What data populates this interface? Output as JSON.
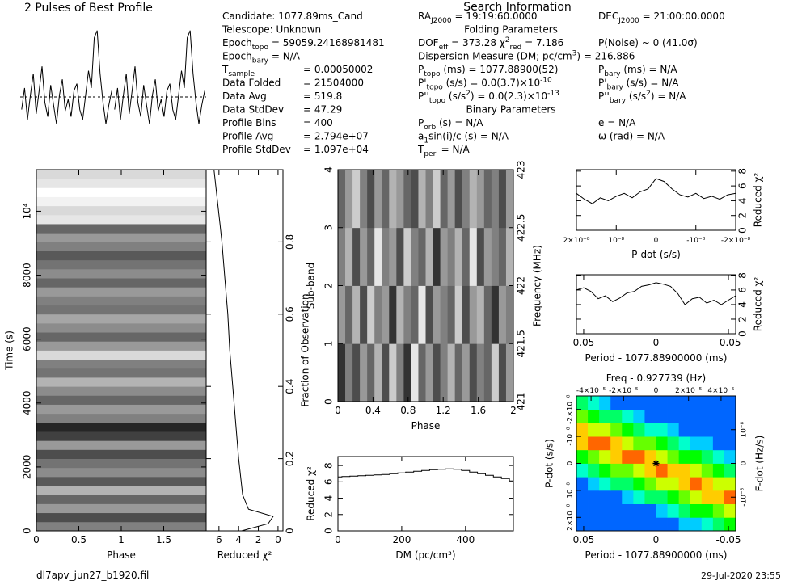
{
  "header": {
    "file": "dl7apv_jun27_b1920.fil",
    "date": "29-Jul-2020 23:55"
  },
  "candidate_info": [
    {
      "label": [
        "Candidate:  1077.89ms_Cand"
      ]
    },
    {
      "label": [
        "Telescope:  Unknown"
      ]
    },
    {
      "label": [
        "Epoch",
        {
          "text": "topo",
          "shift": "sub"
        },
        " = 59059.24168981481"
      ]
    },
    {
      "label": [
        "Epoch",
        {
          "text": "bary",
          "shift": "sub"
        },
        " = N/A"
      ]
    },
    {
      "label": [
        "T",
        {
          "text": "sample",
          "shift": "sub"
        }
      ],
      "value": "=  0.00050002"
    },
    {
      "label": [
        "Data Folded"
      ],
      "value": "=  21504000"
    },
    {
      "label": [
        "Data Avg"
      ],
      "value": "=  519.8"
    },
    {
      "label": [
        "Data StdDev"
      ],
      "value": "=  47.29"
    },
    {
      "label": [
        "Profile Bins"
      ],
      "value": "=  400"
    },
    {
      "label": [
        "Profile Avg"
      ],
      "value": "=  2.794e+07"
    },
    {
      "label": [
        "Profile StdDev"
      ],
      "value": "=  1.097e+04"
    }
  ],
  "search_info": {
    "title": "Search Information",
    "rows": [
      {
        "left": [
          "RA",
          {
            "text": "J2000",
            "shift": "sub"
          },
          " = 19:19:60.0000"
        ],
        "right": [
          "DEC",
          {
            "text": "J2000",
            "shift": "sub"
          },
          " = 21:00:00.0000"
        ]
      },
      {
        "heading": "Folding Parameters"
      },
      {
        "left": [
          "DOF",
          {
            "text": "eff",
            "shift": "sub"
          },
          " = 373.28  χ",
          {
            "text": "2",
            "shift": "sup"
          },
          {
            "text": "red",
            "shift": "sub"
          },
          " = 7.186"
        ],
        "right": [
          "P(Noise) ~ 0   (41.0σ)"
        ]
      },
      {
        "left": [
          "Dispersion Measure (DM; pc/cm",
          {
            "text": "3",
            "shift": "sup"
          },
          ") = 216.886"
        ]
      },
      {
        "left": [
          "P",
          {
            "text": "topo",
            "shift": "sub"
          },
          " (ms) = 1077.88900(52)"
        ],
        "right": [
          "P",
          {
            "text": "bary",
            "shift": "sub"
          },
          " (ms) = N/A"
        ]
      },
      {
        "left": [
          "P'",
          {
            "text": "topo",
            "shift": "sub"
          },
          " (s/s) = 0.0(3.7)×10",
          {
            "text": "-10",
            "shift": "sup"
          }
        ],
        "right": [
          "P'",
          {
            "text": "bary",
            "shift": "sub"
          },
          " (s/s) = N/A"
        ]
      },
      {
        "left": [
          "P''",
          {
            "text": "topo",
            "shift": "sub"
          },
          " (s/s",
          {
            "text": "2",
            "shift": "sup"
          },
          ") = 0.0(2.3)×10",
          {
            "text": "-13",
            "shift": "sup"
          }
        ],
        "right": [
          "P''",
          {
            "text": "bary",
            "shift": "sub"
          },
          " (s/s",
          {
            "text": "2",
            "shift": "sup"
          },
          ") = N/A"
        ]
      },
      {
        "heading": "Binary Parameters"
      },
      {
        "left": [
          "P",
          {
            "text": "orb",
            "shift": "sub"
          },
          " (s) = N/A"
        ],
        "right": [
          "e = N/A"
        ]
      },
      {
        "left": [
          "a",
          {
            "text": "1",
            "shift": "sub"
          },
          "sin(i)/c (s) = N/A"
        ],
        "right": [
          "ω (rad) = N/A"
        ]
      },
      {
        "left": [
          "T",
          {
            "text": "peri",
            "shift": "sub"
          },
          " = N/A"
        ]
      }
    ]
  },
  "chart_data": [
    {
      "type": "line",
      "title": "2 Pulses of Best Profile",
      "repeat": 2,
      "values": [
        45,
        60,
        38,
        55,
        70,
        42,
        58,
        75,
        50,
        40,
        62,
        48,
        35,
        55,
        66,
        44,
        52,
        40,
        58,
        63,
        45,
        38,
        55,
        72,
        60,
        95,
        100,
        70,
        50,
        35,
        48,
        58
      ],
      "ylim": [
        20,
        110
      ]
    },
    {
      "type": "heatmap",
      "colormap": "gray",
      "xlabel": "Phase",
      "ylabel": "Time (s)",
      "z": [
        [
          0.5
        ],
        [
          0.3
        ],
        [
          0.6
        ],
        [
          0.4
        ],
        [
          0.7
        ],
        [
          0.35
        ],
        [
          0.55
        ],
        [
          0.45
        ],
        [
          0.3
        ],
        [
          0.6
        ],
        [
          0.25
        ],
        [
          0.15
        ],
        [
          0.5
        ],
        [
          0.6
        ],
        [
          0.4
        ],
        [
          0.55
        ],
        [
          0.7
        ],
        [
          0.45
        ],
        [
          0.5
        ],
        [
          0.85
        ],
        [
          0.6
        ],
        [
          0.4
        ],
        [
          0.55
        ],
        [
          0.65
        ],
        [
          0.45
        ],
        [
          0.5
        ],
        [
          0.6
        ],
        [
          0.4
        ],
        [
          0.55
        ],
        [
          0.45
        ],
        [
          0.35
        ],
        [
          0.5
        ],
        [
          0.6
        ],
        [
          0.4
        ],
        [
          0.9
        ],
        [
          0.85
        ],
        [
          0.95
        ],
        [
          1
        ],
        [
          0.9
        ],
        [
          0.85
        ]
      ],
      "xlim": [
        0,
        2
      ],
      "xticks": [
        0,
        0.5,
        1,
        1.5
      ],
      "ylim": [
        0,
        11300
      ],
      "yticks": [
        0,
        2000,
        4000,
        6000,
        8000,
        {
          "value": 10000,
          "label": "10⁴"
        }
      ]
    },
    {
      "type": "line",
      "xlabel": "Reduced χ²",
      "ylabel": "Fraction of Observation",
      "y_axis_side": "right",
      "y": [
        0,
        0.02,
        0.04,
        0.06,
        0.1,
        0.2,
        0.3,
        0.4,
        0.5,
        0.6,
        0.7,
        0.8,
        0.85,
        0.9,
        1
      ],
      "values": [
        3.7,
        1.0,
        0.5,
        3.0,
        3.6,
        4.0,
        4.3,
        4.6,
        4.9,
        5.1,
        5.4,
        5.7,
        5.9,
        6.1,
        6.5
      ],
      "xlim": [
        7.3,
        -0.5
      ],
      "xticks": [
        0,
        2,
        4,
        6
      ],
      "ylim": [
        0,
        1
      ],
      "yticks": [
        0,
        0.2,
        0.4,
        0.6,
        0.8
      ]
    },
    {
      "type": "heatmap",
      "colormap": "gray",
      "xlabel": "Phase",
      "ylabel": "Sub-band",
      "y2label": "Frequency (MHz)",
      "z": [
        [
          0.2,
          0.5,
          0.3,
          0.6,
          0.4,
          0.7,
          0.3,
          0.8,
          0.5,
          0.2,
          0.9,
          0.4,
          0.6,
          0.3,
          0.5,
          0.7,
          0.4,
          0.6,
          0.3,
          0.5,
          0.4,
          0.8,
          0.3,
          0.6
        ],
        [
          0.6,
          0.4,
          0.7,
          0.3,
          0.8,
          0.5,
          0.6,
          0.2,
          0.7,
          0.5,
          0.4,
          0.9,
          0.3,
          0.6,
          0.5,
          0.4,
          0.8,
          0.3,
          0.6,
          0.7,
          0.4,
          0.2,
          0.6,
          0.5
        ],
        [
          0.5,
          0.7,
          0.3,
          0.6,
          0.4,
          0.9,
          0.5,
          0.6,
          0.3,
          0.8,
          0.5,
          0.4,
          0.7,
          0.2,
          0.6,
          0.5,
          0.7,
          0.4,
          0.9,
          0.3,
          0.6,
          0.5,
          0.4,
          0.7
        ],
        [
          0.4,
          0.6,
          0.8,
          0.5,
          0.3,
          0.6,
          0.4,
          0.7,
          0.6,
          0.4,
          0.3,
          0.7,
          0.5,
          0.8,
          0.4,
          0.6,
          0.3,
          0.5,
          0.7,
          0.6,
          0.4,
          0.5,
          0.3,
          0.6
        ]
      ],
      "xlim": [
        0,
        2
      ],
      "xticks": [
        0,
        0.4,
        0.8,
        1.2,
        1.6,
        2
      ],
      "ylim": [
        0,
        4
      ],
      "yticks": [
        0,
        1,
        2,
        3,
        4
      ],
      "y2lim": [
        421,
        423
      ],
      "y2ticks": [
        421,
        421.5,
        422,
        422.5,
        423
      ]
    },
    {
      "type": "step",
      "xlabel": "DM (pc/cm³)",
      "ylabel": "Reduced χ²",
      "x": [
        0,
        25,
        50,
        75,
        100,
        125,
        150,
        175,
        200,
        225,
        250,
        275,
        300,
        325,
        350,
        375,
        400,
        425,
        450,
        475,
        500,
        525,
        550
      ],
      "values": [
        6.6,
        6.65,
        6.7,
        6.75,
        6.8,
        6.85,
        6.9,
        7.0,
        7.1,
        7.2,
        7.3,
        7.4,
        7.5,
        7.55,
        7.6,
        7.55,
        7.4,
        7.2,
        7.0,
        6.8,
        6.6,
        6.4,
        6.1
      ],
      "xlim": [
        0,
        550
      ],
      "xticks": [
        0,
        200,
        400
      ],
      "ylim": [
        0,
        9.1
      ],
      "yticks": [
        0,
        2,
        4,
        6,
        8
      ]
    },
    {
      "type": "line",
      "xlabel": "P-dot (s/s)",
      "ylabel": "Reduced χ²",
      "y_axis_side": "right",
      "x": [
        2e-08,
        1.8e-08,
        1.6e-08,
        1.4e-08,
        1.2e-08,
        1e-08,
        8e-09,
        6e-09,
        4e-09,
        2e-09,
        0,
        -2e-09,
        -4e-09,
        -6e-09,
        -8e-09,
        -1e-08,
        -1.2e-08,
        -1.4e-08,
        -1.6e-08,
        -1.8e-08,
        -2e-08
      ],
      "values": [
        5.0,
        4.2,
        3.6,
        4.4,
        4.0,
        4.6,
        5.0,
        4.4,
        5.2,
        5.6,
        7.0,
        6.6,
        5.6,
        4.8,
        4.5,
        5.0,
        4.3,
        4.6,
        4.2,
        4.8,
        5.0
      ],
      "xlim": [
        2e-08,
        -2e-08
      ],
      "xticks": [
        {
          "value": 2e-08,
          "label": "2×10⁻⁸"
        },
        {
          "value": 1e-08,
          "label": "10⁻⁸"
        },
        0,
        {
          "value": -1e-08,
          "label": "-10⁻⁸"
        },
        {
          "value": -2e-08,
          "label": "-2×10⁻⁸"
        }
      ],
      "ylim": [
        0,
        8.2
      ],
      "yticks": [
        0,
        2,
        4,
        6,
        8
      ]
    },
    {
      "type": "line",
      "xlabel": "Period - 1077.88900000 (ms)",
      "ylabel": "Reduced χ²",
      "y_axis_side": "right",
      "x": [
        0.055,
        0.05,
        0.045,
        0.04,
        0.035,
        0.03,
        0.025,
        0.02,
        0.015,
        0.01,
        0.005,
        0,
        -0.005,
        -0.01,
        -0.015,
        -0.02,
        -0.025,
        -0.03,
        -0.035,
        -0.04,
        -0.045,
        -0.05,
        -0.055
      ],
      "values": [
        6.0,
        6.3,
        5.8,
        4.8,
        5.2,
        4.4,
        4.9,
        5.6,
        5.8,
        6.5,
        6.7,
        7.0,
        6.8,
        6.5,
        5.5,
        4.0,
        4.8,
        5.0,
        4.2,
        4.6,
        4.0,
        4.6,
        5.2
      ],
      "xlim": [
        0.055,
        -0.055
      ],
      "xticks": [
        0.05,
        0,
        -0.05
      ],
      "ylim": [
        0,
        8.1
      ],
      "yticks": [
        0,
        2,
        4,
        6,
        8
      ]
    },
    {
      "type": "heatmap",
      "colormap": "rainbow",
      "title": "Freq - 0.927739 (Hz)",
      "xlabel": "Period - 1077.88900000 (ms)",
      "ylabel": "P-dot (s/s)",
      "y2label": "F-dot (Hz/s)",
      "z": [
        [
          0.1,
          0.1,
          0.1,
          0.1,
          0.1,
          0.1,
          0.1,
          0.1,
          0.1,
          0.2,
          0.2,
          0.3,
          0.4,
          0.5
        ],
        [
          0.1,
          0.1,
          0.1,
          0.1,
          0.1,
          0.1,
          0.1,
          0.2,
          0.3,
          0.4,
          0.5,
          0.5,
          0.6,
          0.7
        ],
        [
          0.1,
          0.1,
          0.1,
          0.1,
          0.2,
          0.3,
          0.4,
          0.4,
          0.5,
          0.6,
          0.7,
          0.8,
          0.8,
          0.9
        ],
        [
          0.1,
          0.2,
          0.3,
          0.4,
          0.4,
          0.5,
          0.6,
          0.7,
          0.7,
          0.8,
          0.9,
          0.8,
          0.7,
          0.7
        ],
        [
          0.3,
          0.4,
          0.5,
          0.6,
          0.6,
          0.7,
          0.8,
          0.9,
          0.8,
          0.8,
          0.7,
          0.6,
          0.5,
          0.4
        ],
        [
          0.5,
          0.6,
          0.7,
          0.8,
          0.9,
          0.9,
          0.8,
          0.7,
          0.6,
          0.5,
          0.5,
          0.4,
          0.3,
          0.2
        ],
        [
          0.8,
          0.9,
          0.9,
          0.8,
          0.7,
          0.6,
          0.6,
          0.5,
          0.4,
          0.3,
          0.2,
          0.2,
          0.1,
          0.1
        ],
        [
          0.8,
          0.7,
          0.7,
          0.6,
          0.5,
          0.4,
          0.3,
          0.3,
          0.2,
          0.1,
          0.1,
          0.1,
          0.1,
          0.1
        ],
        [
          0.6,
          0.5,
          0.4,
          0.4,
          0.3,
          0.2,
          0.1,
          0.1,
          0.1,
          0.1,
          0.1,
          0.1,
          0.1,
          0.1
        ],
        [
          0.4,
          0.3,
          0.2,
          0.1,
          0.1,
          0.1,
          0.1,
          0.1,
          0.1,
          0.1,
          0.1,
          0.1,
          0.1,
          0.1
        ]
      ],
      "xlim": [
        0.055,
        -0.055
      ],
      "xticks": [
        0.05,
        0,
        -0.05
      ],
      "x2lim": [
        -4.9e-05,
        4.9e-05
      ],
      "x2ticks": [
        {
          "value": -4e-05,
          "label": "-4×10⁻⁵"
        },
        {
          "value": -2e-05,
          "label": "-2×10⁻⁵"
        },
        0,
        {
          "value": 2e-05,
          "label": "2×10⁻⁵"
        },
        {
          "value": 4e-05,
          "label": "4×10⁻⁵"
        }
      ],
      "ylim": [
        2.5e-08,
        -2.5e-08
      ],
      "yticks": [
        {
          "value": 2e-08,
          "label": "2×10⁻⁸"
        },
        {
          "value": 1e-08,
          "label": "10⁻⁸"
        },
        0,
        {
          "value": -1e-08,
          "label": "-10⁻⁸"
        },
        {
          "value": -2e-08,
          "label": "-2×10⁻⁸"
        }
      ],
      "y2lim": [
        -2e-08,
        2e-08
      ],
      "y2ticks": [
        {
          "value": -1e-08,
          "label": "-10⁻⁸"
        },
        0,
        {
          "value": 1e-08,
          "label": "10⁻⁸"
        }
      ]
    }
  ]
}
